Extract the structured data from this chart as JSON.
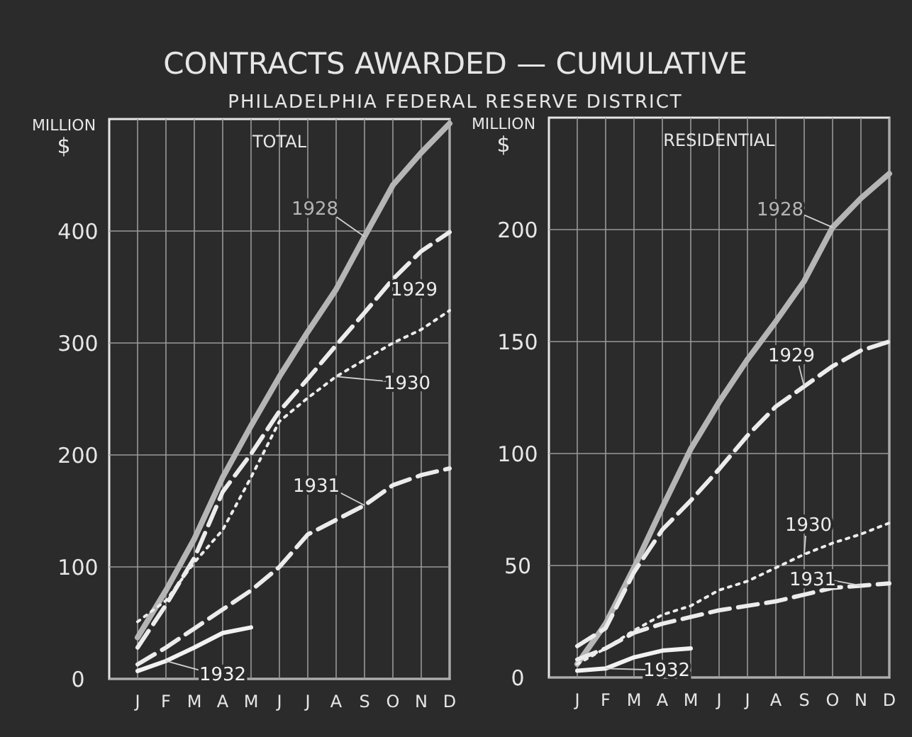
{
  "chart_data": [
    {
      "type": "line",
      "title": "CONTRACTS AWARDED — CUMULATIVE",
      "subtitle": "PHILADELPHIA FEDERAL RESERVE DISTRICT",
      "annotations": [
        "TOTAL"
      ],
      "ylabel": "MILLION $",
      "categories": [
        "J",
        "F",
        "M",
        "A",
        "M",
        "J",
        "J",
        "A",
        "S",
        "O",
        "N",
        "D"
      ],
      "ylim": [
        0,
        500
      ],
      "yticks": [
        0,
        100,
        200,
        300,
        400
      ],
      "grid": true,
      "marker": "none",
      "series": [
        {
          "name": "1928",
          "color": "#b5b5b5",
          "line_style": "solid",
          "values": [
            37,
            79,
            125,
            180,
            226,
            270,
            310,
            348,
            395,
            441,
            470,
            496
          ]
        },
        {
          "name": "1929",
          "color": "#ececec",
          "line_style": "dashed",
          "values": [
            28,
            66,
            108,
            167,
            201,
            239,
            268,
            298,
            327,
            357,
            382,
            399
          ]
        },
        {
          "name": "1930",
          "color": "#ececec",
          "line_style": "dotted",
          "values": [
            51,
            70,
            104,
            133,
            180,
            230,
            251,
            270,
            285,
            300,
            312,
            329
          ]
        },
        {
          "name": "1931",
          "color": "#ececec",
          "line_style": "dashed",
          "values": [
            13,
            28,
            45,
            62,
            79,
            100,
            129,
            142,
            155,
            173,
            182,
            188
          ]
        },
        {
          "name": "1932",
          "color": "#f2f2f2",
          "line_style": "solid",
          "values": [
            7,
            16,
            28,
            41,
            46,
            null,
            null,
            null,
            null,
            null,
            null,
            null
          ]
        }
      ]
    },
    {
      "type": "line",
      "annotations": [
        "RESIDENTIAL"
      ],
      "ylabel": "MILLION $",
      "categories": [
        "J",
        "F",
        "M",
        "A",
        "M",
        "J",
        "J",
        "A",
        "S",
        "O",
        "N",
        "D"
      ],
      "ylim": [
        0,
        250
      ],
      "yticks": [
        0,
        50,
        100,
        150,
        200
      ],
      "grid": true,
      "marker": "none",
      "series": [
        {
          "name": "1928",
          "color": "#b5b5b5",
          "line_style": "solid",
          "values": [
            6,
            24,
            49,
            76,
            102,
            123,
            142,
            159,
            177,
            201,
            214,
            225
          ]
        },
        {
          "name": "1929",
          "color": "#ececec",
          "line_style": "dashed",
          "values": [
            14,
            22,
            47,
            66,
            79,
            93,
            108,
            121,
            130,
            139,
            146,
            150
          ]
        },
        {
          "name": "1930",
          "color": "#ececec",
          "line_style": "dotted",
          "values": [
            6,
            13,
            21,
            28,
            32,
            39,
            43,
            49,
            55,
            60,
            64,
            69
          ]
        },
        {
          "name": "1931",
          "color": "#ececec",
          "line_style": "dashed",
          "values": [
            8,
            13,
            20,
            24,
            27,
            30,
            32,
            34,
            37,
            40,
            41,
            42
          ]
        },
        {
          "name": "1932",
          "color": "#f2f2f2",
          "line_style": "solid",
          "values": [
            3,
            4,
            9,
            12,
            13,
            null,
            null,
            null,
            null,
            null,
            null,
            null
          ]
        }
      ]
    }
  ]
}
